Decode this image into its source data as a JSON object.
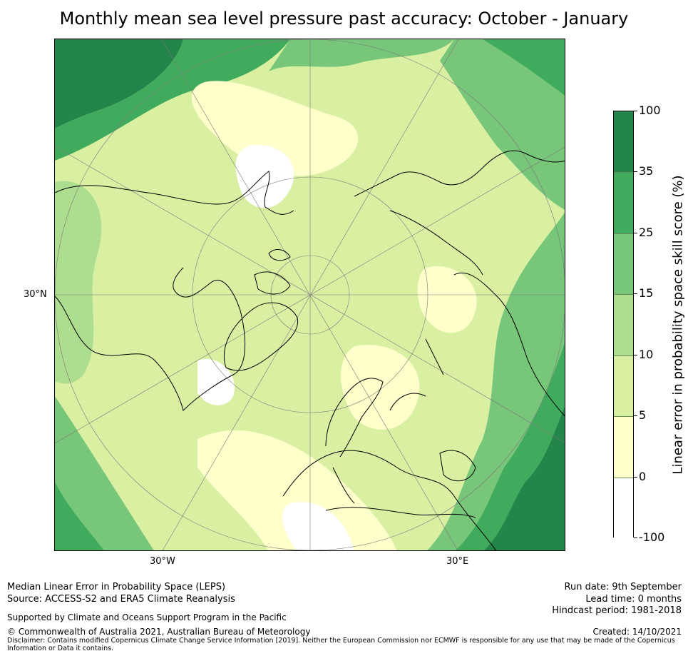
{
  "title": "Monthly mean sea level pressure past accuracy: October - January",
  "map": {
    "projection": "north-polar-stereographic",
    "lat_label": "30°N",
    "lon_labels": {
      "west": "30°W",
      "east": "30°E"
    },
    "region": "Northern Hemisphere"
  },
  "colorbar": {
    "label": "Linear error in probability space skill score (%)",
    "ticks": [
      "100",
      "35",
      "25",
      "15",
      "10",
      "5",
      "0",
      "-100"
    ],
    "bins": [
      {
        "from": 35,
        "to": 100,
        "color": "#23854a"
      },
      {
        "from": 25,
        "to": 35,
        "color": "#41ab5d"
      },
      {
        "from": 15,
        "to": 25,
        "color": "#78c679"
      },
      {
        "from": 10,
        "to": 15,
        "color": "#addd8e"
      },
      {
        "from": 5,
        "to": 10,
        "color": "#d9f0a3"
      },
      {
        "from": 0,
        "to": 5,
        "color": "#ffffcc"
      },
      {
        "from": -100,
        "to": 0,
        "color": "#ffffff"
      }
    ]
  },
  "footer": {
    "line1": "Median Linear Error in Probability Space (LEPS)",
    "line2": "Source: ACCESS-S2 and ERA5 Climate Reanalysis",
    "support": "Supported by Climate and Oceans Support Program in the Pacific",
    "copyright": "© Commonwealth of Australia 2021, Australian Bureau of Meteorology",
    "disclaimer1": "Disclaimer: Contains modified Copernicus Climate Change Service Information [2019]. Neither the European Commission nor ECMWF is responsible for any use that may be made of the Copernicus",
    "disclaimer2": "Information or Data it contains.",
    "run_date": "Run date: 9th September",
    "lead_time": "Lead time: 0 months",
    "hindcast": "Hindcast period: 1981-2018",
    "created": "Created: 14/10/2021"
  }
}
